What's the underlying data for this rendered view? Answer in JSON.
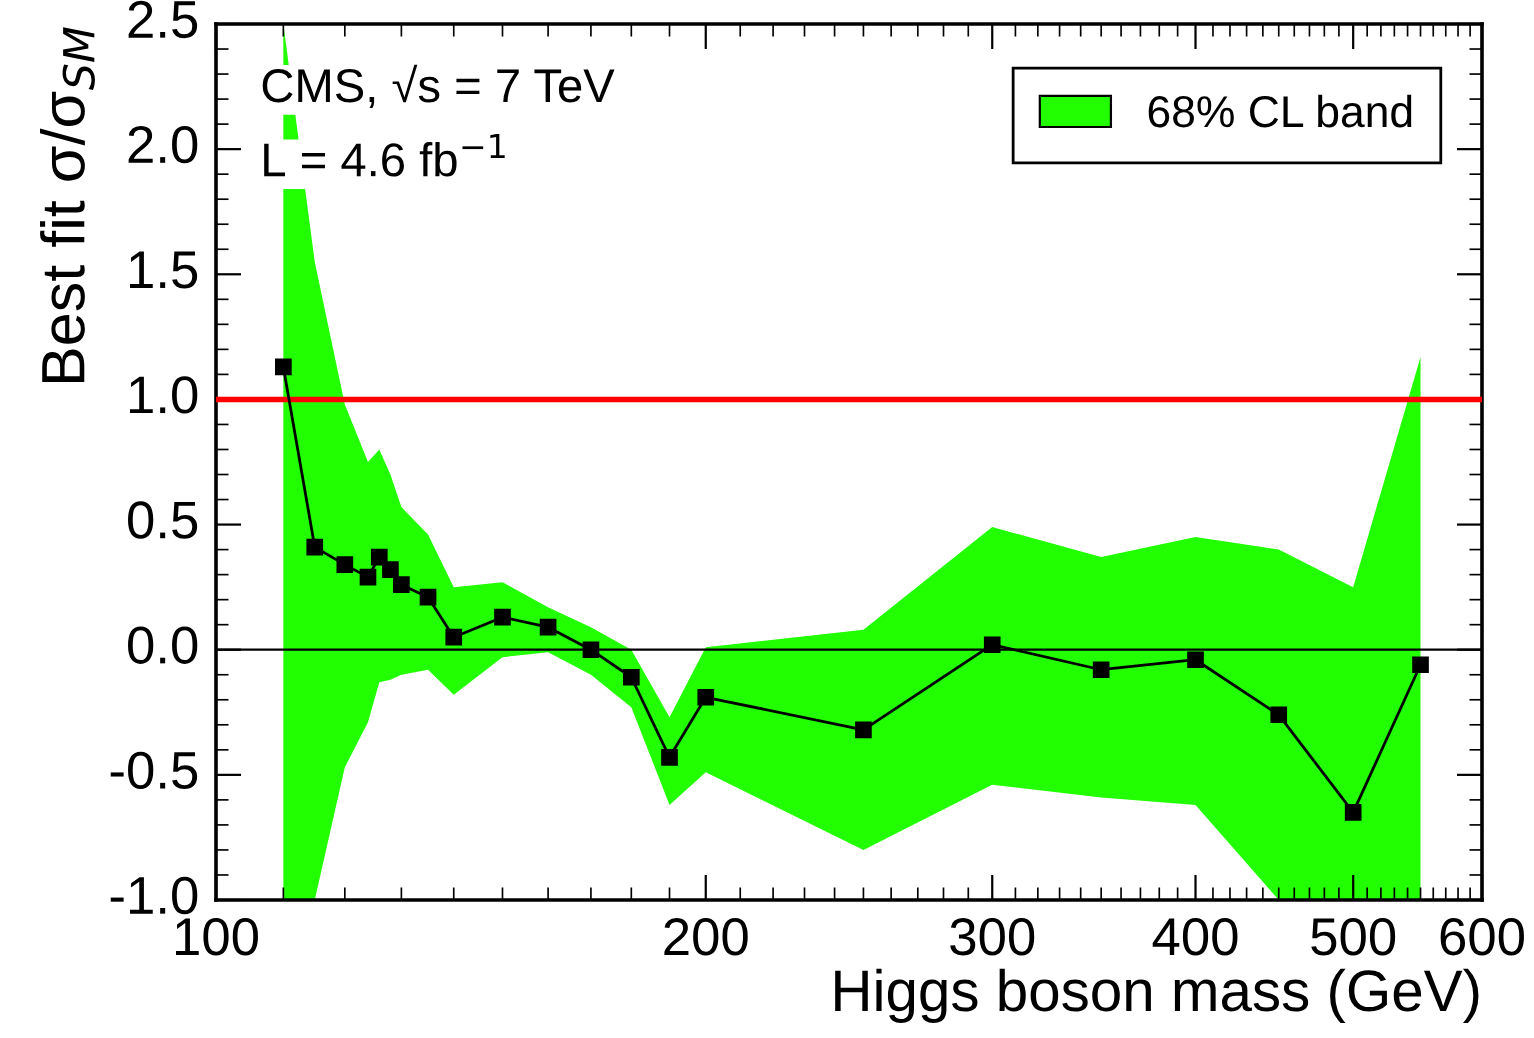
{
  "chart_data": {
    "type": "line",
    "xlabel": "Higgs boson mass (GeV)",
    "ylabel": "Best fit σ/σ$_{SM}$",
    "annotations": [
      "CMS, √s = 7 TeV",
      "L = 4.6 fb$^{−1}$"
    ],
    "x": [
      110,
      115,
      120,
      124,
      126,
      128,
      130,
      135,
      140,
      150,
      160,
      170,
      180,
      190,
      200,
      250,
      300,
      350,
      400,
      450,
      500,
      550
    ],
    "series": [
      {
        "name": "68% CL band",
        "color": "#22ff00",
        "marker": "none",
        "values": [
          null,
          null,
          null,
          null,
          null,
          null,
          null,
          null,
          null,
          null,
          null,
          null,
          null,
          null,
          null,
          null,
          null,
          null,
          null,
          null,
          null,
          null
        ],
        "lower": [
          -1.0,
          -1.0,
          -0.47,
          -0.29,
          -0.13,
          -0.12,
          -0.1,
          -0.08,
          -0.18,
          -0.03,
          -0.01,
          -0.1,
          -0.23,
          -0.62,
          -0.49,
          -0.8,
          -0.54,
          -0.59,
          -0.62,
          -1.0,
          -1.0,
          -1.0
        ],
        "upper": [
          2.5,
          1.55,
          0.98,
          0.75,
          0.8,
          0.7,
          0.57,
          0.46,
          0.25,
          0.27,
          0.17,
          0.09,
          0.0,
          -0.27,
          0.01,
          0.08,
          0.49,
          0.37,
          0.45,
          0.4,
          0.25,
          1.17
        ]
      },
      {
        "color": "#000000",
        "marker": "square",
        "values": [
          1.13,
          0.41,
          0.34,
          0.29,
          0.37,
          0.32,
          0.26,
          0.21,
          0.05,
          0.13,
          0.09,
          0.0,
          -0.11,
          -0.43,
          -0.19,
          -0.32,
          0.02,
          -0.08,
          -0.04,
          -0.26,
          -0.65,
          -0.06
        ]
      }
    ],
    "log": "x",
    "xlim": [
      100,
      600
    ],
    "xticks": [
      100,
      200,
      300,
      400,
      500,
      600
    ],
    "ylim": [
      -1.0,
      2.5
    ],
    "yticks": [
      {
        "value": -1.0,
        "label": "-1.0"
      },
      {
        "value": -0.5,
        "label": "-0.5"
      },
      {
        "value": 0.0,
        "label": "0.0"
      },
      {
        "value": 0.5,
        "label": "0.5"
      },
      {
        "value": 1.0,
        "label": "1.0"
      },
      {
        "value": 1.5,
        "label": "1.5"
      },
      {
        "value": 2.0,
        "label": "2.0"
      },
      {
        "value": 2.5,
        "label": "2.5"
      }
    ],
    "ref_lines": [
      {
        "axis": "y",
        "value": 1,
        "color": "#ff0000"
      },
      {
        "axis": "y",
        "value": 0,
        "color": "#000000"
      }
    ],
    "legend": "top right"
  }
}
